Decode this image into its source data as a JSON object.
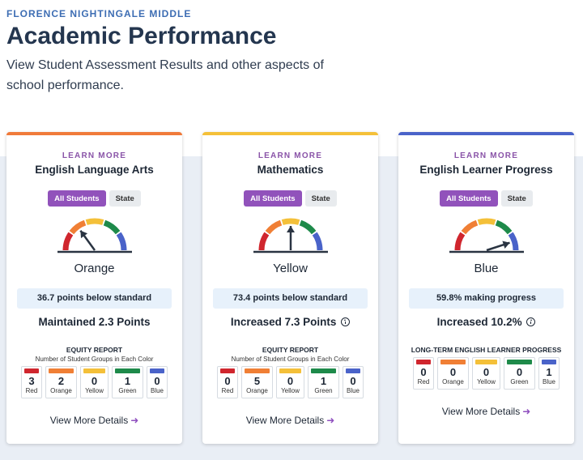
{
  "header": {
    "school": "FLORENCE NIGHTINGALE MIDDLE",
    "title": "Academic Performance",
    "subtitle": "View Student Assessment Results and other aspects of school performance."
  },
  "colors": {
    "red": "#d0262e",
    "orange": "#f07f35",
    "yellow": "#f4c039",
    "green": "#1e8a4a",
    "blue": "#4a63c9",
    "accent": "#9152bb"
  },
  "cards": [
    {
      "accent": "#f07a3a",
      "learn_more": "LEARN MORE",
      "title": "English Language Arts",
      "toggle_on": "All Students",
      "toggle_off": "State",
      "gauge_level": "Orange",
      "color_label": "Orange",
      "status": "36.7 points below standard",
      "change": "Maintained 2.3 Points",
      "change_icon": "",
      "report_title": "EQUITY REPORT",
      "report_sub": "Number of Student Groups in Each Color",
      "groups": [
        {
          "count": "3",
          "label": "Red"
        },
        {
          "count": "2",
          "label": "Orange"
        },
        {
          "count": "0",
          "label": "Yellow"
        },
        {
          "count": "1",
          "label": "Green"
        },
        {
          "count": "0",
          "label": "Blue"
        }
      ],
      "more": "View More Details"
    },
    {
      "accent": "#f4c039",
      "learn_more": "LEARN MORE",
      "title": "Mathematics",
      "toggle_on": "All Students",
      "toggle_off": "State",
      "gauge_level": "Yellow",
      "color_label": "Yellow",
      "status": "73.4 points below standard",
      "change": "Increased 7.3 Points",
      "change_icon": "up-circle-icon",
      "report_title": "EQUITY REPORT",
      "report_sub": "Number of Student Groups in Each Color",
      "groups": [
        {
          "count": "0",
          "label": "Red"
        },
        {
          "count": "5",
          "label": "Orange"
        },
        {
          "count": "0",
          "label": "Yellow"
        },
        {
          "count": "1",
          "label": "Green"
        },
        {
          "count": "0",
          "label": "Blue"
        }
      ],
      "more": "View More Details"
    },
    {
      "accent": "#4a63c9",
      "learn_more": "LEARN MORE",
      "title": "English Learner Progress",
      "toggle_on": "All Students",
      "toggle_off": "State",
      "gauge_level": "Blue",
      "color_label": "Blue",
      "status": "59.8% making progress",
      "change": "Increased 10.2%",
      "change_icon": "up-circle-icon",
      "report_title": "LONG-TERM ENGLISH LEARNER PROGRESS",
      "report_sub": "",
      "groups": [
        {
          "count": "0",
          "label": "Red"
        },
        {
          "count": "0",
          "label": "Orange"
        },
        {
          "count": "0",
          "label": "Yellow"
        },
        {
          "count": "0",
          "label": "Green"
        },
        {
          "count": "1",
          "label": "Blue"
        }
      ],
      "more": "View More Details"
    }
  ]
}
